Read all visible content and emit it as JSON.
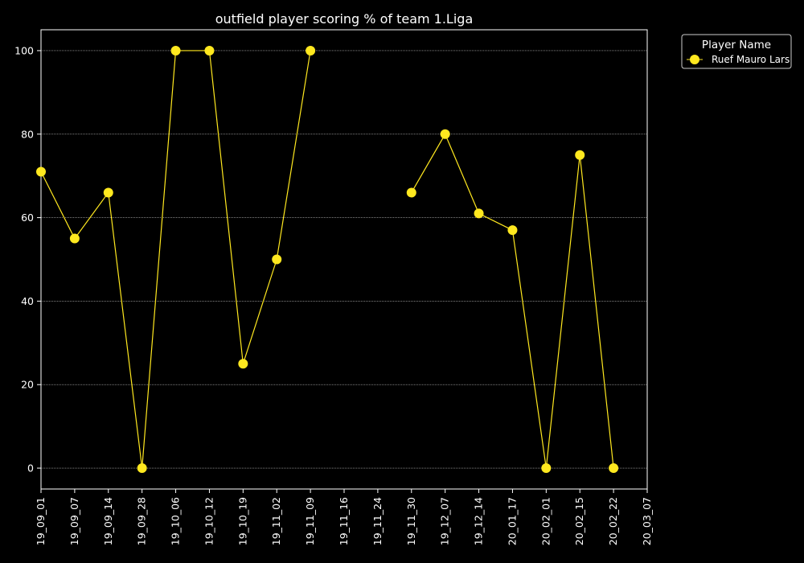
{
  "chart_data": {
    "type": "line",
    "title": "outfield player scoring % of team 1.Liga",
    "xlabel": "",
    "ylabel": "",
    "categories": [
      "19_09_01",
      "19_09_07",
      "19_09_14",
      "19_09_28",
      "19_10_06",
      "19_10_12",
      "19_10_19",
      "19_11_02",
      "19_11_09",
      "19_11_16",
      "19_11_24",
      "19_11_30",
      "19_12_07",
      "19_12_14",
      "20_01_17",
      "20_02_01",
      "20_02_15",
      "20_02_22",
      "20_03_07"
    ],
    "yticks": [
      0,
      20,
      40,
      60,
      80,
      100
    ],
    "ylim": [
      -5,
      105
    ],
    "grid": true,
    "legend": {
      "title": "Player Name",
      "placement": "outside-top-right"
    },
    "series": [
      {
        "name": "Ruef Mauro Lars",
        "color": "#ffe81f",
        "values": [
          71,
          55,
          66,
          0,
          100,
          100,
          25,
          50,
          100,
          null,
          null,
          66,
          80,
          61,
          57,
          0,
          75,
          0,
          null
        ]
      }
    ]
  },
  "colors": {
    "background": "#000000",
    "axes": "#ffffff",
    "grid": "#cccccc",
    "line": "#ffe81f"
  }
}
